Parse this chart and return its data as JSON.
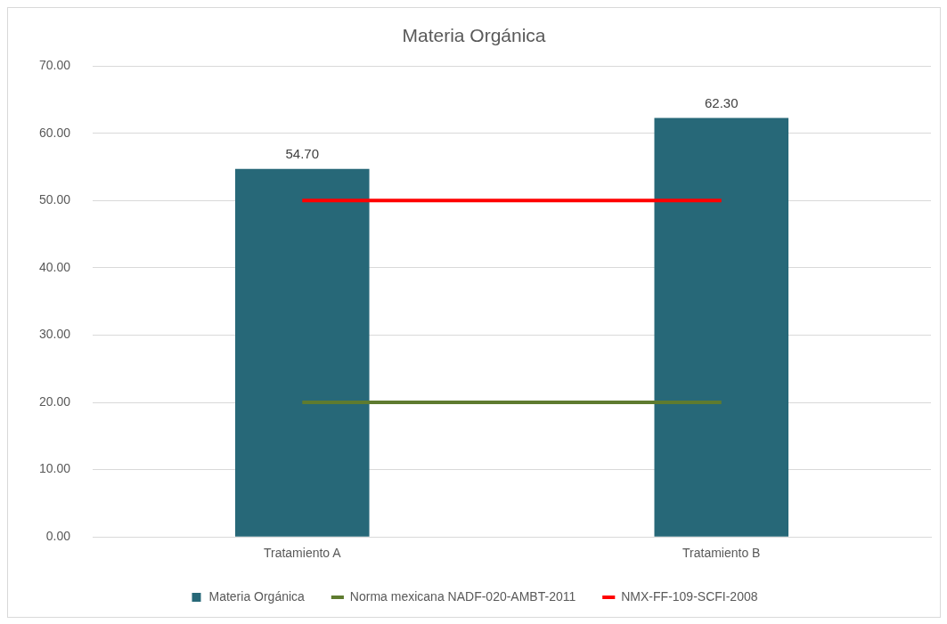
{
  "chart_data": {
    "type": "bar",
    "title": "Materia Orgánica",
    "categories": [
      "Tratamiento A",
      "Tratamiento B"
    ],
    "series": [
      {
        "name": "Materia Orgánica",
        "color": "#276878",
        "values": [
          54.7,
          62.3
        ],
        "value_labels": [
          "54.70",
          "62.30"
        ]
      },
      {
        "name": "Norma mexicana NADF-020-AMBT-2011",
        "type": "line",
        "color": "#5e7b2f",
        "values": [
          20,
          20
        ]
      },
      {
        "name": "NMX-FF-109-SCFI-2008",
        "type": "line",
        "color": "#ff0000",
        "values": [
          50,
          50
        ]
      }
    ],
    "ylim": [
      0,
      70
    ],
    "yticks": [
      {
        "value": 0,
        "label": "0.00"
      },
      {
        "value": 10,
        "label": "10.00"
      },
      {
        "value": 20,
        "label": "20.00"
      },
      {
        "value": 30,
        "label": "30.00"
      },
      {
        "value": 40,
        "label": "40.00"
      },
      {
        "value": 50,
        "label": "50.00"
      },
      {
        "value": 60,
        "label": "60.00"
      },
      {
        "value": 70,
        "label": "70.00"
      }
    ],
    "grid": "y",
    "legend": "bottom",
    "marker": "none",
    "line_style": "solid"
  }
}
